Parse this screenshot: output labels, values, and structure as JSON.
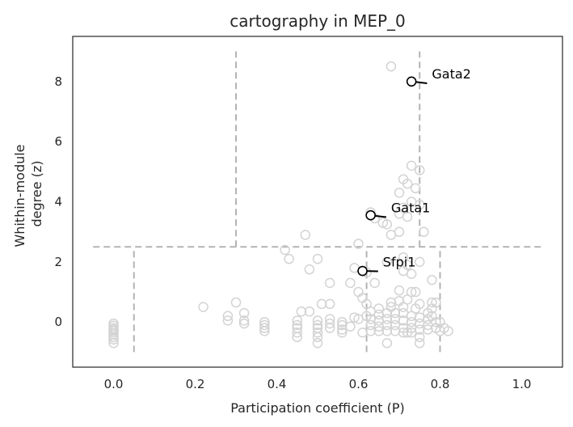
{
  "chart_data": {
    "type": "scatter",
    "title": "cartography in MEP_0",
    "xlabel": "Participation coefficient (P)",
    "ylabel": [
      "Whithin-module",
      "degree (z)"
    ],
    "xlim": [
      -0.1,
      1.1
    ],
    "ylim": [
      -1.5,
      9.5
    ],
    "xticks": [
      0.0,
      0.2,
      0.4,
      0.6,
      0.8,
      1.0
    ],
    "xtick_labels": [
      "0.0",
      "0.2",
      "0.4",
      "0.6",
      "0.8",
      "1.0"
    ],
    "yticks": [
      0,
      2,
      4,
      6,
      8
    ],
    "ytick_labels": [
      "0",
      "2",
      "4",
      "6",
      "8"
    ],
    "grid": false,
    "colors": {
      "background_points": "#d3d3d3",
      "highlight_points": "#000000",
      "region_lines": "#b3b3b3",
      "frame": "#262626"
    },
    "region_lines": {
      "horizontal": [
        {
          "y": 2.5,
          "x0": -0.05,
          "x1": 1.05
        }
      ],
      "vertical": [
        {
          "x": 0.05,
          "y0": -1.0,
          "y1": 2.5
        },
        {
          "x": 0.62,
          "y0": -1.0,
          "y1": 2.5
        },
        {
          "x": 0.8,
          "y0": -1.0,
          "y1": 2.5
        },
        {
          "x": 0.3,
          "y0": 2.5,
          "y1": 9.0
        },
        {
          "x": 0.75,
          "y0": 2.5,
          "y1": 9.0
        }
      ]
    },
    "highlighted": [
      {
        "label": "Gata2",
        "x": 0.73,
        "y": 8.0,
        "label_x": 0.78,
        "label_y": 8.1
      },
      {
        "label": "Gata1",
        "x": 0.63,
        "y": 3.55,
        "label_x": 0.68,
        "label_y": 3.65
      },
      {
        "label": "Sfpi1",
        "x": 0.61,
        "y": 1.7,
        "label_x": 0.66,
        "label_y": 1.85
      }
    ],
    "points": [
      [
        0.68,
        8.5
      ],
      [
        0.73,
        5.2
      ],
      [
        0.75,
        5.05
      ],
      [
        0.71,
        4.75
      ],
      [
        0.72,
        4.6
      ],
      [
        0.74,
        4.45
      ],
      [
        0.7,
        4.3
      ],
      [
        0.73,
        4.0
      ],
      [
        0.75,
        3.9
      ],
      [
        0.71,
        3.8
      ],
      [
        0.63,
        3.65
      ],
      [
        0.64,
        3.45
      ],
      [
        0.66,
        3.3
      ],
      [
        0.67,
        3.25
      ],
      [
        0.7,
        3.6
      ],
      [
        0.72,
        3.5
      ],
      [
        0.76,
        3.0
      ],
      [
        0.68,
        2.9
      ],
      [
        0.7,
        3.0
      ],
      [
        0.47,
        2.9
      ],
      [
        0.6,
        2.6
      ],
      [
        0.42,
        2.4
      ],
      [
        0.43,
        2.1
      ],
      [
        0.5,
        2.1
      ],
      [
        0.71,
        2.15
      ],
      [
        0.67,
        2.0
      ],
      [
        0.72,
        1.9
      ],
      [
        0.75,
        2.0
      ],
      [
        0.59,
        1.8
      ],
      [
        0.62,
        1.65
      ],
      [
        0.48,
        1.75
      ],
      [
        0.71,
        1.7
      ],
      [
        0.73,
        1.6
      ],
      [
        0.78,
        1.4
      ],
      [
        0.53,
        1.3
      ],
      [
        0.58,
        1.3
      ],
      [
        0.64,
        1.3
      ],
      [
        0.6,
        1.0
      ],
      [
        0.7,
        1.05
      ],
      [
        0.73,
        1.0
      ],
      [
        0.74,
        1.0
      ],
      [
        0.61,
        0.8
      ],
      [
        0.62,
        0.6
      ],
      [
        0.68,
        0.65
      ],
      [
        0.7,
        0.7
      ],
      [
        0.72,
        0.75
      ],
      [
        0.75,
        0.6
      ],
      [
        0.78,
        0.65
      ],
      [
        0.79,
        0.65
      ],
      [
        0.3,
        0.65
      ],
      [
        0.51,
        0.6
      ],
      [
        0.53,
        0.6
      ],
      [
        0.22,
        0.5
      ],
      [
        0.65,
        0.45
      ],
      [
        0.68,
        0.5
      ],
      [
        0.71,
        0.5
      ],
      [
        0.74,
        0.45
      ],
      [
        0.78,
        0.45
      ],
      [
        0.46,
        0.35
      ],
      [
        0.48,
        0.35
      ],
      [
        0.32,
        0.3
      ],
      [
        0.28,
        0.2
      ],
      [
        0.28,
        0.05
      ],
      [
        0.32,
        0.05
      ],
      [
        0.32,
        -0.05
      ],
      [
        0.37,
        0.0
      ],
      [
        0.37,
        -0.1
      ],
      [
        0.37,
        -0.2
      ],
      [
        0.45,
        0.05
      ],
      [
        0.45,
        -0.1
      ],
      [
        0.45,
        -0.2
      ],
      [
        0.45,
        -0.35
      ],
      [
        0.5,
        0.05
      ],
      [
        0.5,
        -0.1
      ],
      [
        0.5,
        -0.2
      ],
      [
        0.5,
        -0.35
      ],
      [
        0.5,
        -0.5
      ],
      [
        0.5,
        -0.7
      ],
      [
        0.53,
        0.1
      ],
      [
        0.53,
        -0.05
      ],
      [
        0.53,
        -0.2
      ],
      [
        0.56,
        0.0
      ],
      [
        0.56,
        -0.1
      ],
      [
        0.56,
        -0.25
      ],
      [
        0.59,
        0.15
      ],
      [
        0.6,
        0.1
      ],
      [
        0.62,
        0.2
      ],
      [
        0.63,
        0.1
      ],
      [
        0.63,
        -0.1
      ],
      [
        0.63,
        -0.3
      ],
      [
        0.65,
        0.25
      ],
      [
        0.65,
        0.05
      ],
      [
        0.65,
        -0.15
      ],
      [
        0.65,
        -0.3
      ],
      [
        0.67,
        0.3
      ],
      [
        0.67,
        0.1
      ],
      [
        0.67,
        -0.1
      ],
      [
        0.67,
        -0.3
      ],
      [
        0.67,
        -0.7
      ],
      [
        0.69,
        0.3
      ],
      [
        0.69,
        0.1
      ],
      [
        0.69,
        -0.1
      ],
      [
        0.69,
        -0.3
      ],
      [
        0.71,
        0.3
      ],
      [
        0.71,
        0.05
      ],
      [
        0.71,
        -0.2
      ],
      [
        0.71,
        -0.35
      ],
      [
        0.73,
        0.2
      ],
      [
        0.73,
        0.0
      ],
      [
        0.73,
        -0.2
      ],
      [
        0.73,
        -0.35
      ],
      [
        0.75,
        0.15
      ],
      [
        0.75,
        -0.05
      ],
      [
        0.75,
        -0.25
      ],
      [
        0.75,
        -0.5
      ],
      [
        0.75,
        -0.7
      ],
      [
        0.77,
        0.1
      ],
      [
        0.77,
        -0.1
      ],
      [
        0.77,
        -0.25
      ],
      [
        0.79,
        0.0
      ],
      [
        0.79,
        -0.2
      ],
      [
        0.8,
        -0.3
      ],
      [
        0.8,
        0.0
      ],
      [
        0.81,
        -0.2
      ],
      [
        0.82,
        -0.3
      ],
      [
        0.77,
        0.3
      ],
      [
        0.78,
        0.2
      ],
      [
        0.61,
        -0.35
      ],
      [
        0.72,
        -0.35
      ],
      [
        0.58,
        -0.15
      ],
      [
        0.0,
        -0.05
      ],
      [
        0.0,
        -0.12
      ],
      [
        0.0,
        -0.2
      ],
      [
        0.0,
        -0.28
      ],
      [
        0.0,
        -0.35
      ],
      [
        0.0,
        -0.42
      ],
      [
        0.0,
        -0.5
      ],
      [
        0.0,
        -0.58
      ],
      [
        0.0,
        -0.7
      ],
      [
        0.0,
        -0.25
      ],
      [
        0.37,
        -0.3
      ],
      [
        0.45,
        -0.5
      ],
      [
        0.56,
        -0.35
      ],
      [
        0.63,
        0.35
      ]
    ]
  }
}
